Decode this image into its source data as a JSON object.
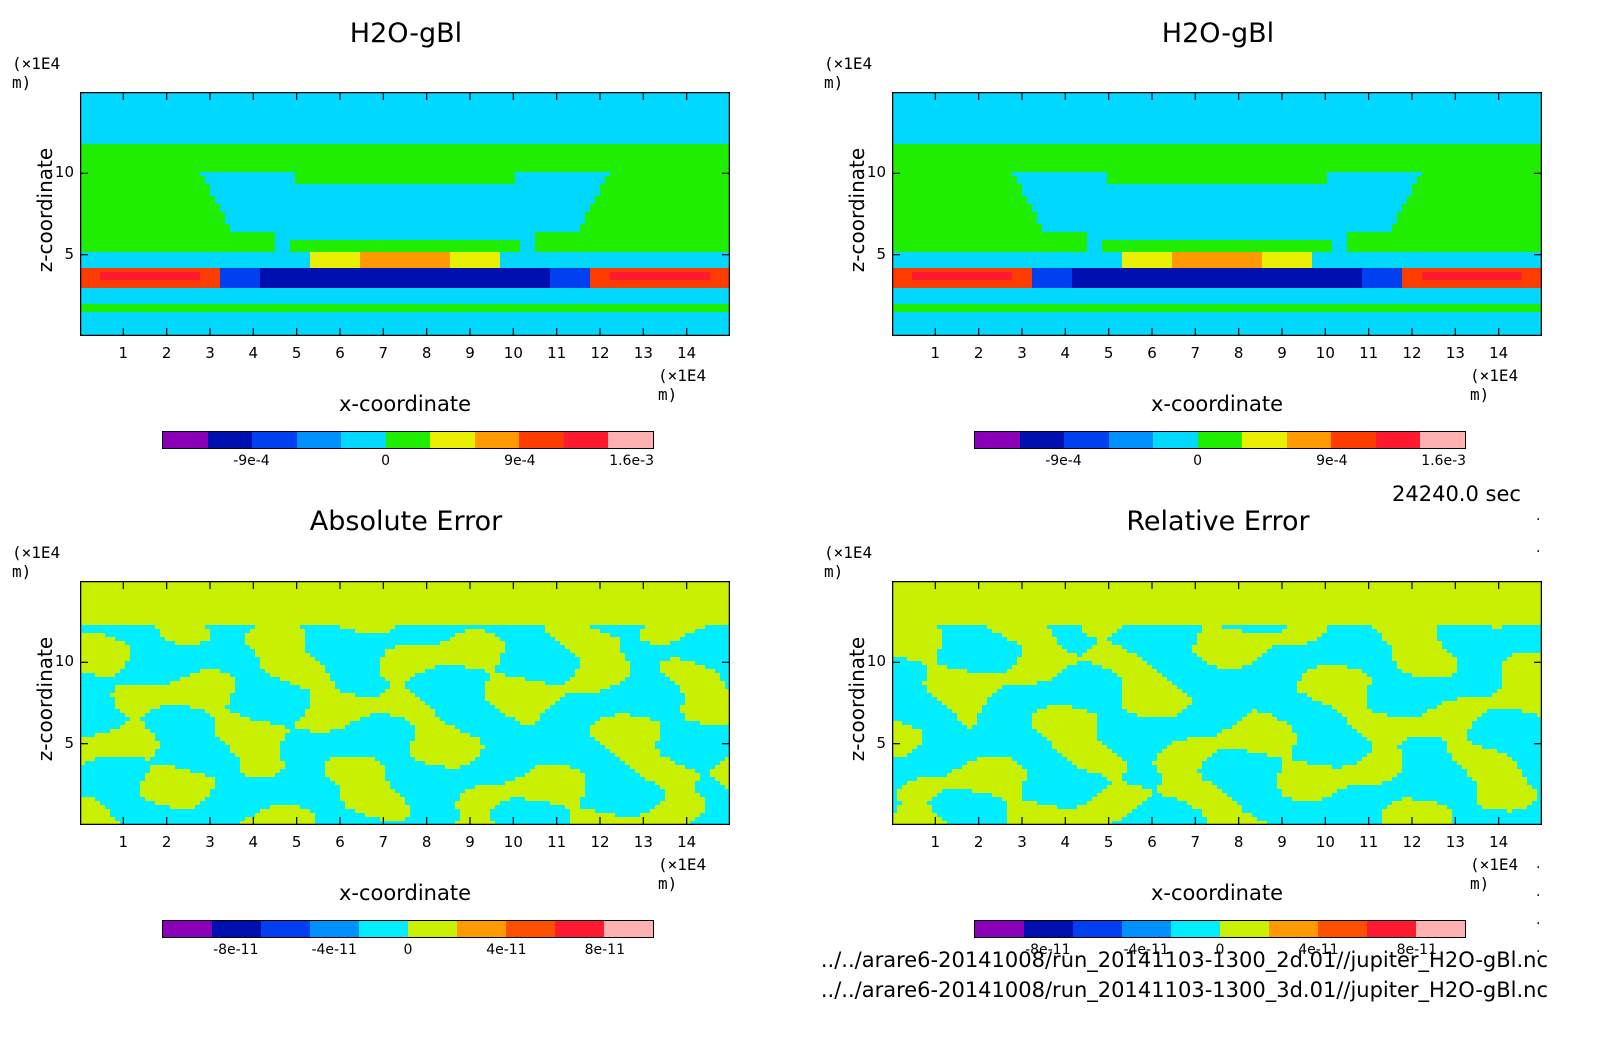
{
  "time_label": "24240.0 sec",
  "footer_lines": [
    "../../arare6-20141008/run_20141103-1300_2d.01//jupiter_H2O-gBl.nc",
    "../../arare6-20141008/run_20141103-1300_3d.01//jupiter_H2O-gBl.nc"
  ],
  "chart_data": [
    {
      "type": "heatmap",
      "title": "H2O-gBl",
      "xlabel": "x-coordinate",
      "ylabel": "z-coordinate",
      "x_unit": "(×1E4 m)",
      "z_unit": "(×1E4 m)",
      "xlim": [
        0,
        15
      ],
      "ylim": [
        0,
        15
      ],
      "x_ticks": [
        1,
        2,
        3,
        4,
        5,
        6,
        7,
        8,
        9,
        10,
        11,
        12,
        13,
        14
      ],
      "y_ticks": [
        5,
        10
      ],
      "colorbar": {
        "labels": [
          "-9e-4",
          "0",
          "9e-4",
          "1.6e-3"
        ],
        "colors": [
          "#8a00b8",
          "#0010b0",
          "#0040f0",
          "#0090ff",
          "#00d8ff",
          "#20ee00",
          "#e8f000",
          "#ff9900",
          "#ff3c00",
          "#ff1a30",
          "#ffb0b0"
        ]
      }
    },
    {
      "type": "heatmap",
      "title": "H2O-gBl",
      "xlabel": "x-coordinate",
      "ylabel": "z-coordinate",
      "x_unit": "(×1E4 m)",
      "z_unit": "(×1E4 m)",
      "xlim": [
        0,
        15
      ],
      "ylim": [
        0,
        15
      ],
      "x_ticks": [
        1,
        2,
        3,
        4,
        5,
        6,
        7,
        8,
        9,
        10,
        11,
        12,
        13,
        14
      ],
      "y_ticks": [
        5,
        10
      ],
      "colorbar": {
        "labels": [
          "-9e-4",
          "0",
          "9e-4",
          "1.6e-3"
        ],
        "colors": [
          "#8a00b8",
          "#0010b0",
          "#0040f0",
          "#0090ff",
          "#00d8ff",
          "#20ee00",
          "#e8f000",
          "#ff9900",
          "#ff3c00",
          "#ff1a30",
          "#ffb0b0"
        ]
      }
    },
    {
      "type": "heatmap",
      "title": "Absolute Error",
      "xlabel": "x-coordinate",
      "ylabel": "z-coordinate",
      "x_unit": "(×1E4 m)",
      "z_unit": "(×1E4 m)",
      "xlim": [
        0,
        15
      ],
      "ylim": [
        0,
        15
      ],
      "x_ticks": [
        1,
        2,
        3,
        4,
        5,
        6,
        7,
        8,
        9,
        10,
        11,
        12,
        13,
        14
      ],
      "y_ticks": [
        5,
        10
      ],
      "colorbar": {
        "labels": [
          "-8e-11",
          "-4e-11",
          "0",
          "4e-11",
          "8e-11"
        ],
        "colors": [
          "#8a00b8",
          "#0010b0",
          "#0040f0",
          "#0090ff",
          "#00eeff",
          "#c8f000",
          "#ff9900",
          "#ff5000",
          "#ff1a30",
          "#ffb0b0"
        ]
      }
    },
    {
      "type": "heatmap",
      "title": "Relative Error",
      "xlabel": "x-coordinate",
      "ylabel": "z-coordinate",
      "x_unit": "(×1E4 m)",
      "z_unit": "(×1E4 m)",
      "xlim": [
        0,
        15
      ],
      "ylim": [
        0,
        15
      ],
      "x_ticks": [
        1,
        2,
        3,
        4,
        5,
        6,
        7,
        8,
        9,
        10,
        11,
        12,
        13,
        14
      ],
      "y_ticks": [
        5,
        10
      ],
      "colorbar": {
        "labels": [
          "-8e-11",
          "-4e-11",
          "0",
          "4e-11",
          "8e-11"
        ],
        "colors": [
          "#8a00b8",
          "#0010b0",
          "#0040f0",
          "#0090ff",
          "#00eeff",
          "#c8f000",
          "#ff9900",
          "#ff5000",
          "#ff1a30",
          "#ffb0b0"
        ]
      }
    }
  ]
}
